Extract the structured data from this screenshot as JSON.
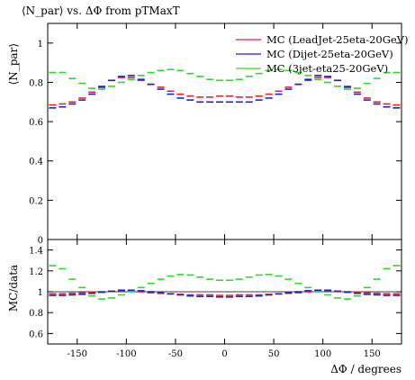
{
  "chart_data": [
    {
      "type": "scatter",
      "title": "⟨N_par⟩ vs. ΔΦ from pTMaxT",
      "ylabel": "⟨N_par⟩",
      "xlim": [
        -180,
        180
      ],
      "ylim": [
        0,
        1.1
      ],
      "xticks": [
        -150,
        -100,
        -50,
        0,
        50,
        100,
        150
      ],
      "yticks": [
        0,
        0.2,
        0.4,
        0.6,
        0.8,
        1
      ],
      "ytick_labels": [
        "0",
        "0.2",
        "0.4",
        "0.6",
        "0.8",
        "1"
      ],
      "legend_position": "top-right",
      "x": [
        -175,
        -165,
        -155,
        -145,
        -135,
        -125,
        -115,
        -105,
        -95,
        -85,
        -75,
        -65,
        -55,
        -45,
        -35,
        -25,
        -15,
        -5,
        5,
        15,
        25,
        35,
        45,
        55,
        65,
        75,
        85,
        95,
        105,
        115,
        125,
        135,
        145,
        155,
        165,
        175
      ],
      "series": [
        {
          "name": "MC (LeadJet-25eta-20GeV)",
          "color": "#e8202a",
          "values": [
            0.685,
            0.69,
            0.7,
            0.72,
            0.75,
            0.78,
            0.81,
            0.825,
            0.825,
            0.81,
            0.79,
            0.775,
            0.755,
            0.74,
            0.73,
            0.725,
            0.725,
            0.73,
            0.73,
            0.725,
            0.725,
            0.73,
            0.74,
            0.755,
            0.775,
            0.79,
            0.81,
            0.825,
            0.825,
            0.81,
            0.78,
            0.75,
            0.72,
            0.7,
            0.69,
            0.685
          ]
        },
        {
          "name": "MC (Dijet-25eta-20GeV)",
          "color": "#1f1fd8",
          "values": [
            0.67,
            0.675,
            0.69,
            0.71,
            0.74,
            0.775,
            0.81,
            0.83,
            0.835,
            0.815,
            0.79,
            0.765,
            0.74,
            0.72,
            0.71,
            0.7,
            0.7,
            0.7,
            0.7,
            0.7,
            0.7,
            0.71,
            0.72,
            0.74,
            0.765,
            0.79,
            0.815,
            0.835,
            0.83,
            0.81,
            0.775,
            0.74,
            0.71,
            0.69,
            0.675,
            0.67
          ]
        },
        {
          "name": "MC (3jet-eta25-20GeV)",
          "color": "#2fd62f",
          "values": [
            0.85,
            0.85,
            0.82,
            0.795,
            0.77,
            0.765,
            0.78,
            0.8,
            0.815,
            0.835,
            0.85,
            0.86,
            0.865,
            0.86,
            0.845,
            0.83,
            0.815,
            0.81,
            0.81,
            0.815,
            0.83,
            0.845,
            0.86,
            0.865,
            0.86,
            0.85,
            0.835,
            0.815,
            0.8,
            0.78,
            0.765,
            0.77,
            0.795,
            0.82,
            0.85,
            0.85
          ]
        }
      ]
    },
    {
      "type": "scatter",
      "ylabel": "MC/data",
      "xlabel": "ΔΦ / degrees",
      "xlim": [
        -180,
        180
      ],
      "ylim": [
        0.5,
        1.5
      ],
      "xticks": [
        -150,
        -100,
        -50,
        0,
        50,
        100,
        150
      ],
      "xtick_labels": [
        "-150",
        "-100",
        "-50",
        "0",
        "50",
        "100",
        "150"
      ],
      "yticks": [
        0.6,
        0.8,
        1,
        1.2,
        1.4
      ],
      "ytick_labels": [
        "0.6",
        "0.8",
        "1",
        "1.2",
        "1.4"
      ],
      "reference_line": 1,
      "x": [
        -175,
        -165,
        -155,
        -145,
        -135,
        -125,
        -115,
        -105,
        -95,
        -85,
        -75,
        -65,
        -55,
        -45,
        -35,
        -25,
        -15,
        -5,
        5,
        15,
        25,
        35,
        45,
        55,
        65,
        75,
        85,
        95,
        105,
        115,
        125,
        135,
        145,
        155,
        165,
        175
      ],
      "series": [
        {
          "color": "#e8202a",
          "values": [
            0.98,
            0.98,
            0.985,
            0.99,
            0.995,
            1.0,
            1.005,
            1.01,
            1.005,
            1.0,
            0.99,
            0.985,
            0.98,
            0.975,
            0.97,
            0.97,
            0.97,
            0.965,
            0.965,
            0.97,
            0.97,
            0.97,
            0.975,
            0.98,
            0.985,
            0.99,
            1.0,
            1.005,
            1.01,
            1.005,
            1.0,
            0.995,
            0.99,
            0.985,
            0.98,
            0.98
          ]
        },
        {
          "color": "#1f1fd8",
          "values": [
            0.965,
            0.965,
            0.97,
            0.975,
            0.985,
            0.995,
            1.005,
            1.015,
            1.015,
            1.01,
            1.0,
            0.99,
            0.98,
            0.97,
            0.96,
            0.955,
            0.955,
            0.95,
            0.95,
            0.955,
            0.955,
            0.96,
            0.97,
            0.98,
            0.99,
            1.0,
            1.01,
            1.015,
            1.015,
            1.005,
            0.995,
            0.985,
            0.975,
            0.97,
            0.965,
            0.965
          ]
        },
        {
          "color": "#2fd62f",
          "values": [
            1.25,
            1.22,
            1.12,
            1.04,
            0.96,
            0.93,
            0.94,
            0.97,
            1.0,
            1.04,
            1.08,
            1.12,
            1.15,
            1.165,
            1.16,
            1.14,
            1.12,
            1.11,
            1.11,
            1.12,
            1.14,
            1.16,
            1.165,
            1.15,
            1.12,
            1.08,
            1.04,
            1.0,
            0.97,
            0.94,
            0.93,
            0.96,
            1.04,
            1.12,
            1.22,
            1.25
          ]
        }
      ]
    }
  ]
}
